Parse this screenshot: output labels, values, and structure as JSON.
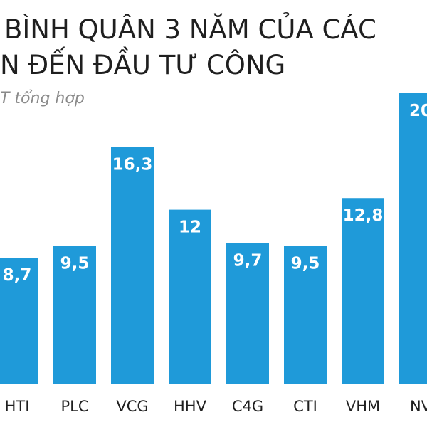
{
  "title_lines": [
    "BÌNH QUÂN 3 NĂM CỦA CÁC",
    "N ĐẾN ĐẦU TƯ CÔNG"
  ],
  "source": "T tổng hợp",
  "colors": {
    "bar": "#1f9ad9",
    "text": "#1f1f1f",
    "source": "#8a8a8a"
  },
  "chart_data": {
    "type": "bar",
    "title": "BÌNH QUÂN 3 NĂM CỦA CÁC N ĐẾN ĐẦU TƯ CÔNG",
    "categories": [
      "HTI",
      "PLC",
      "VCG",
      "HHV",
      "C4G",
      "CTI",
      "VHM",
      "NV"
    ],
    "values": [
      8.7,
      9.5,
      16.3,
      12,
      9.7,
      9.5,
      12.8,
      20
    ],
    "value_labels": [
      "8,7",
      "9,5",
      "16,3",
      "12",
      "9,7",
      "9,5",
      "12,8",
      "20"
    ],
    "grid": false,
    "legend": "none"
  }
}
